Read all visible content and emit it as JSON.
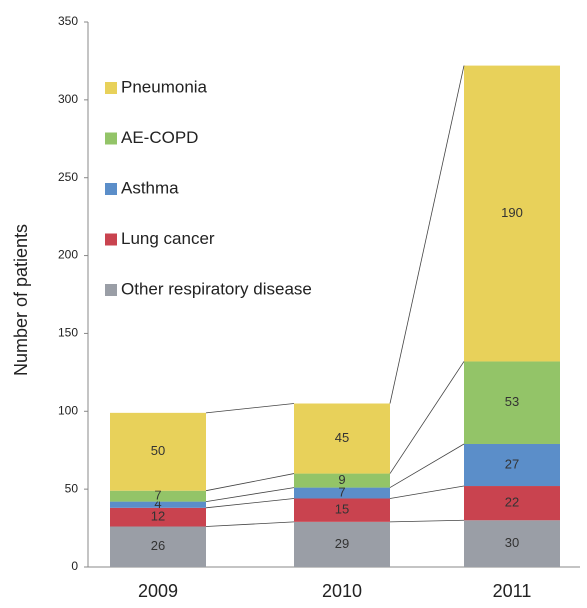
{
  "chart_data": {
    "type": "stacked_bar",
    "y_label": "Number of patients",
    "categories": [
      "2009",
      "2010",
      "2011"
    ],
    "series": [
      {
        "name": "Other respiratory disease",
        "color": "#9a9ea6",
        "values": [
          26,
          29,
          30
        ]
      },
      {
        "name": "Lung cancer",
        "color": "#c9434f",
        "values": [
          12,
          15,
          22
        ]
      },
      {
        "name": "Asthma",
        "color": "#5b8ec9",
        "values": [
          4,
          7,
          27
        ]
      },
      {
        "name": "AE-COPD",
        "color": "#93c468",
        "values": [
          7,
          9,
          53
        ]
      },
      {
        "name": "Pneumonia",
        "color": "#e8d15a",
        "values": [
          50,
          45,
          190
        ]
      }
    ],
    "ylim": [
      0,
      350
    ],
    "yticks": [
      0,
      50,
      100,
      150,
      200,
      250,
      300,
      350
    ],
    "grid": false,
    "legend": "upper left"
  }
}
